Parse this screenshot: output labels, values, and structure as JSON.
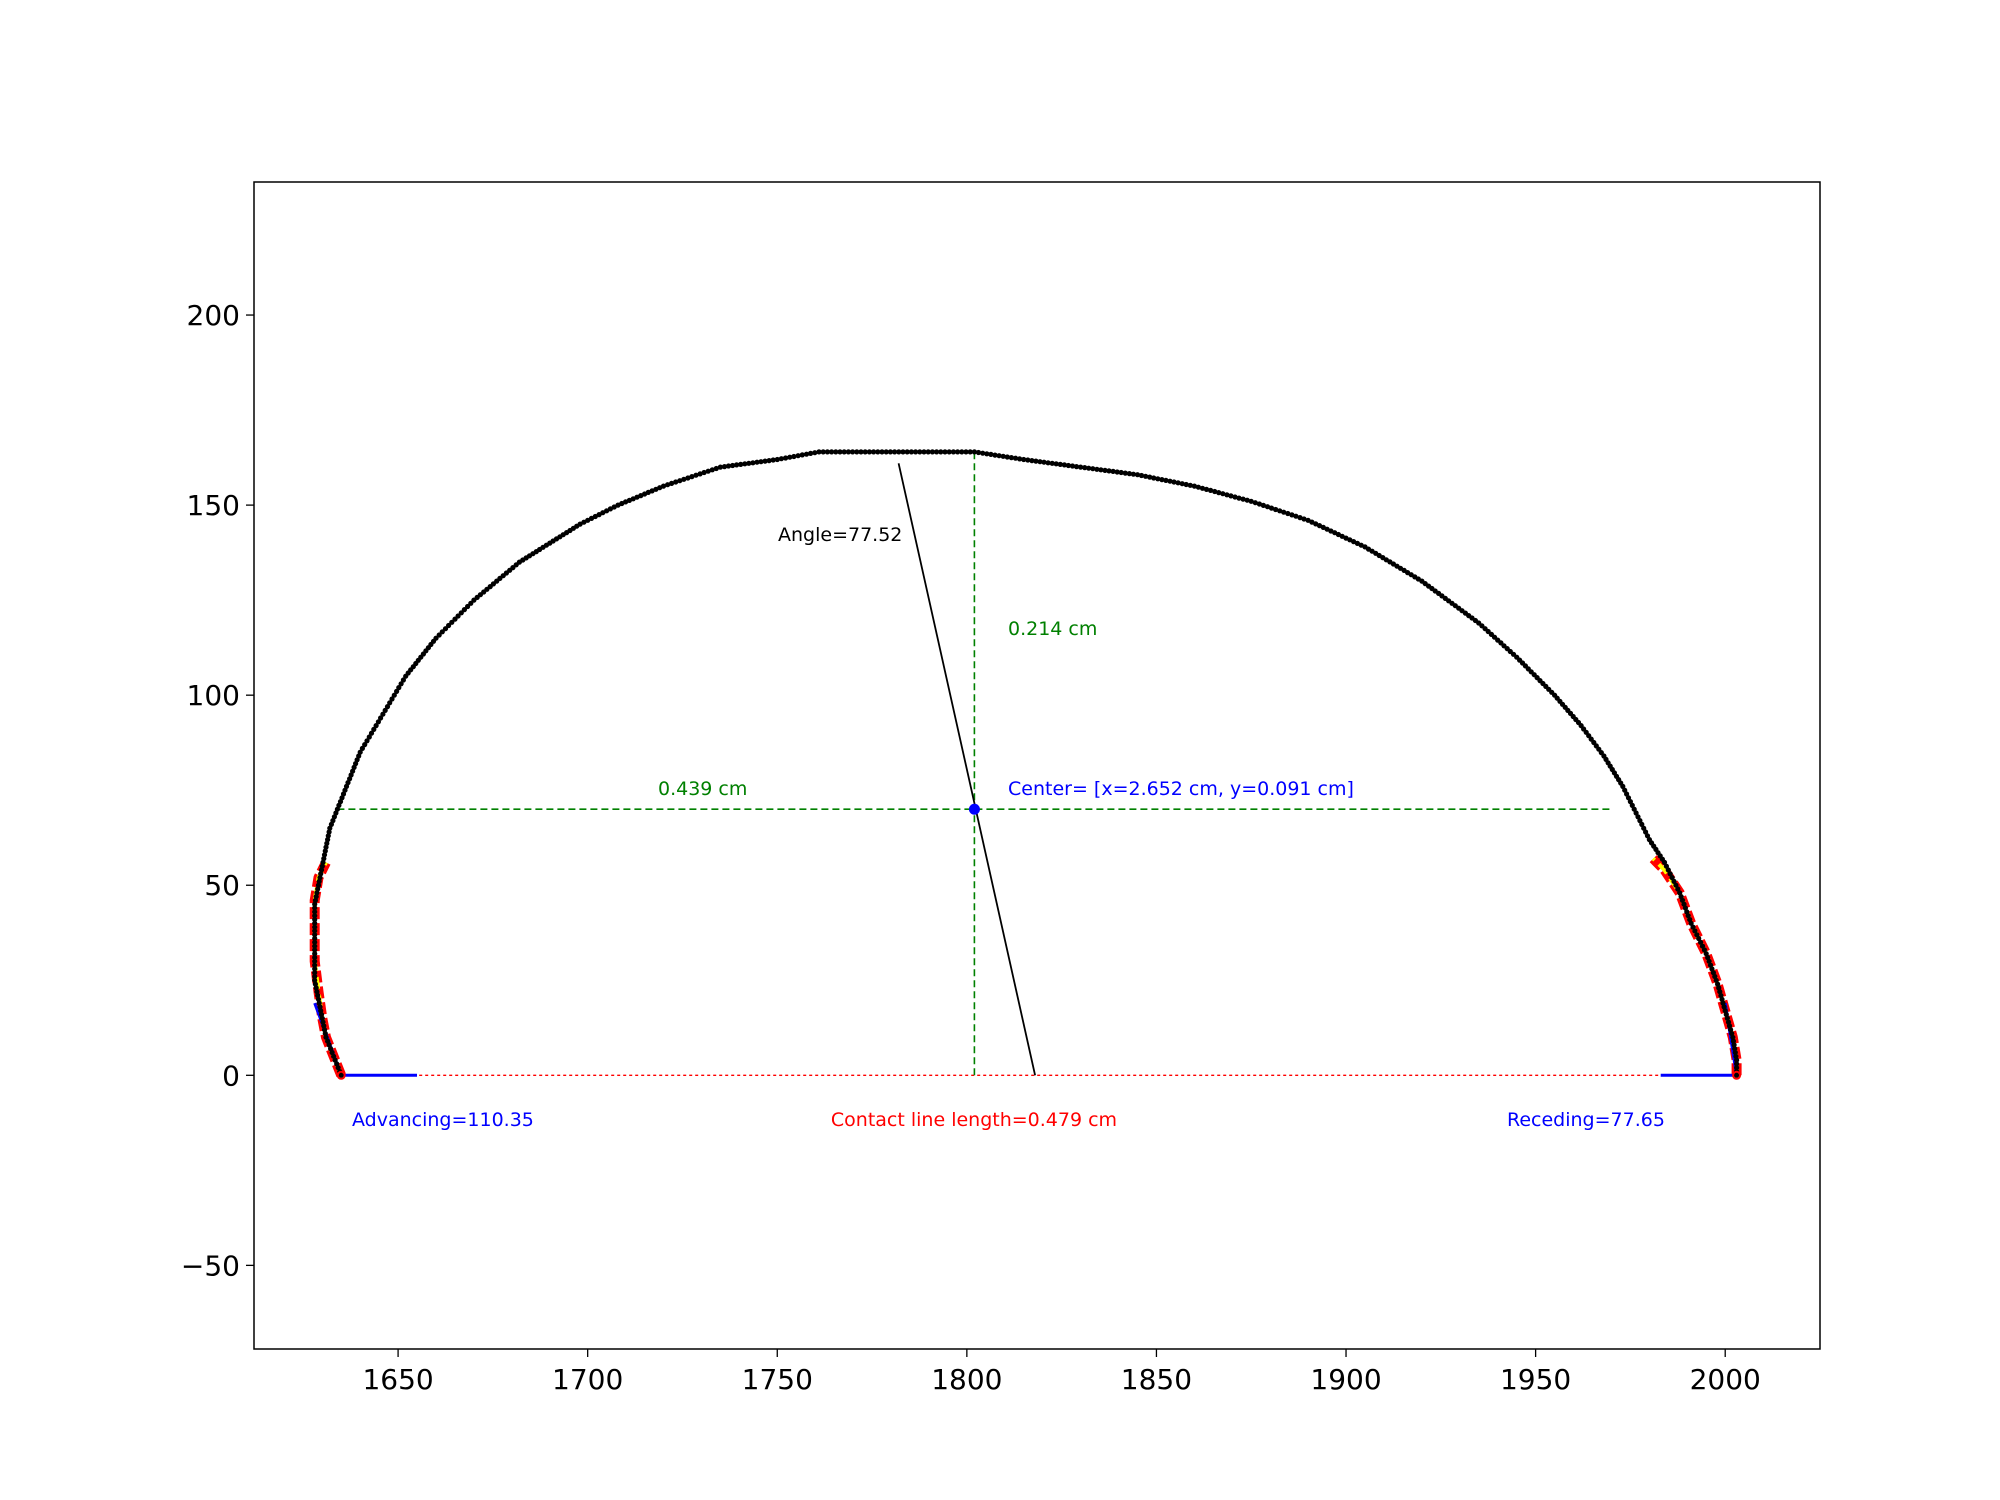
{
  "chart_data": {
    "type": "scatter",
    "title": "",
    "xlabel": "",
    "ylabel": "",
    "xlim": [
      1612,
      2025
    ],
    "ylim": [
      -72,
      235
    ],
    "xticks": [
      1650,
      1700,
      1750,
      1800,
      1850,
      1900,
      1950,
      2000
    ],
    "yticks": [
      -50,
      0,
      50,
      100,
      150,
      200
    ],
    "xtick_labels": [
      "1650",
      "1700",
      "1750",
      "1800",
      "1850",
      "1900",
      "1950",
      "2000"
    ],
    "ytick_labels": [
      "−50",
      "0",
      "50",
      "100",
      "150",
      "200"
    ],
    "grid": false,
    "colors": {
      "profile": "#000000",
      "baseline": "#ff0000",
      "fit_region": "#ff0000",
      "fit_curve": "#ffff00",
      "tangent": "#0000ff",
      "guides": "#008000",
      "center": "#0000ff",
      "tilt_line": "#000000"
    },
    "droplet_profile": {
      "left_foot": [
        1635,
        0
      ],
      "right_foot": [
        2003,
        0
      ],
      "apex": [
        1781,
        164
      ],
      "apex_plateau": [
        1761,
        1802
      ],
      "points": [
        [
          1635,
          0
        ],
        [
          1633,
          5
        ],
        [
          1631,
          10
        ],
        [
          1630,
          15
        ],
        [
          1629,
          20
        ],
        [
          1628,
          25
        ],
        [
          1628,
          30
        ],
        [
          1628,
          35
        ],
        [
          1628,
          40
        ],
        [
          1628,
          45
        ],
        [
          1629,
          50
        ],
        [
          1630,
          55
        ],
        [
          1631,
          60
        ],
        [
          1632,
          65
        ],
        [
          1634,
          70
        ],
        [
          1636,
          75
        ],
        [
          1638,
          80
        ],
        [
          1640,
          85
        ],
        [
          1643,
          90
        ],
        [
          1646,
          95
        ],
        [
          1649,
          100
        ],
        [
          1652,
          105
        ],
        [
          1656,
          110
        ],
        [
          1660,
          115
        ],
        [
          1665,
          120
        ],
        [
          1670,
          125
        ],
        [
          1676,
          130
        ],
        [
          1682,
          135
        ],
        [
          1690,
          140
        ],
        [
          1698,
          145
        ],
        [
          1708,
          150
        ],
        [
          1720,
          155
        ],
        [
          1735,
          160
        ],
        [
          1750,
          162
        ],
        [
          1761,
          164
        ],
        [
          1802,
          164
        ],
        [
          1815,
          162
        ],
        [
          1830,
          160
        ],
        [
          1845,
          158
        ],
        [
          1860,
          155
        ],
        [
          1875,
          151
        ],
        [
          1890,
          146
        ],
        [
          1905,
          139
        ],
        [
          1920,
          130
        ],
        [
          1935,
          119
        ],
        [
          1945,
          110
        ],
        [
          1955,
          100
        ],
        [
          1962,
          92
        ],
        [
          1968,
          84
        ],
        [
          1973,
          76
        ],
        [
          1977,
          68
        ],
        [
          1980,
          62
        ],
        [
          1984,
          56
        ],
        [
          1988,
          48
        ],
        [
          1991,
          40
        ],
        [
          1995,
          32
        ],
        [
          1998,
          24
        ],
        [
          2000,
          17
        ],
        [
          2002,
          10
        ],
        [
          2003,
          4
        ],
        [
          2003,
          0
        ]
      ]
    },
    "fit_left": [
      [
        1635,
        0
      ],
      [
        1633,
        5
      ],
      [
        1631,
        10
      ],
      [
        1630,
        15
      ],
      [
        1629,
        22
      ],
      [
        1628,
        30
      ],
      [
        1628,
        38
      ],
      [
        1628,
        46
      ],
      [
        1629,
        52
      ],
      [
        1631,
        56
      ]
    ],
    "fit_right": [
      [
        2003,
        0
      ],
      [
        2003,
        4
      ],
      [
        2002,
        10
      ],
      [
        2000,
        17
      ],
      [
        1998,
        24
      ],
      [
        1995,
        32
      ],
      [
        1991,
        40
      ],
      [
        1988,
        48
      ],
      [
        1984,
        54
      ],
      [
        1981,
        57
      ]
    ],
    "tangent_left": [
      [
        1628,
        19
      ],
      [
        1635,
        0
      ],
      [
        1655,
        0
      ]
    ],
    "tangent_right": [
      [
        2000,
        19
      ],
      [
        2003,
        0
      ],
      [
        1983,
        0
      ]
    ],
    "baseline": [
      [
        1635,
        0
      ],
      [
        2003,
        0
      ]
    ],
    "center": [
      1802,
      70
    ],
    "horizontal_guide": [
      [
        1634,
        70
      ],
      [
        1970,
        70
      ]
    ],
    "vertical_guide": [
      [
        1802,
        0
      ],
      [
        1802,
        164
      ]
    ],
    "tilt_line": [
      [
        1782,
        161
      ],
      [
        1818,
        0
      ]
    ],
    "annotations": {
      "angle": "Angle=77.52",
      "height": "0.214 cm",
      "width": "0.439 cm",
      "center": "Center= [x=2.652 cm, y=0.091 cm]",
      "advancing": "Advancing=110.35",
      "contact_length": "Contact line length=0.479 cm",
      "receding": "Receding=77.65"
    }
  }
}
